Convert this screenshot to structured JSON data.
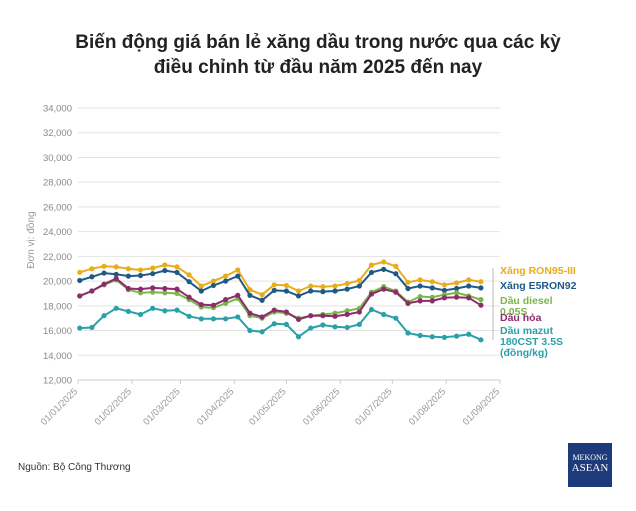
{
  "chart_data": {
    "type": "line",
    "title": "Biến động giá bán lẻ xăng dầu trong nước qua các kỳ điều chỉnh từ đầu năm 2025 đến nay",
    "y_label": "Đơn vị: đồng",
    "source": "Nguồn: Bộ Công Thương",
    "logo": [
      "MEKONG",
      "ASEAN"
    ],
    "x": [
      "2025-01-02",
      "2025-01-09",
      "2025-01-16",
      "2025-01-23",
      "2025-01-30",
      "2025-02-06",
      "2025-02-13",
      "2025-02-20",
      "2025-02-27",
      "2025-03-06",
      "2025-03-13",
      "2025-03-20",
      "2025-03-27",
      "2025-04-03",
      "2025-04-10",
      "2025-04-17",
      "2025-04-24",
      "2025-05-01",
      "2025-05-08",
      "2025-05-15",
      "2025-05-22",
      "2025-05-29",
      "2025-06-05",
      "2025-06-12",
      "2025-06-19",
      "2025-06-26",
      "2025-07-03",
      "2025-07-10",
      "2025-07-17",
      "2025-07-24",
      "2025-07-31",
      "2025-08-07",
      "2025-08-14",
      "2025-08-21"
    ],
    "xlim": [
      "2025-01-01",
      "2025-09-01"
    ],
    "xticks": [
      {
        "value": "2025-01-01",
        "label": "01/01/2025"
      },
      {
        "value": "2025-02-01",
        "label": "01/02/2025"
      },
      {
        "value": "2025-03-01",
        "label": "01/03/2025"
      },
      {
        "value": "2025-04-01",
        "label": "01/04/2025"
      },
      {
        "value": "2025-05-01",
        "label": "01/05/2025"
      },
      {
        "value": "2025-06-01",
        "label": "01/06/2025"
      },
      {
        "value": "2025-07-01",
        "label": "01/07/2025"
      },
      {
        "value": "2025-08-01",
        "label": "01/08/2025"
      },
      {
        "value": "2025-09-01",
        "label": "01/09/2025"
      }
    ],
    "ylim": [
      12000,
      34000
    ],
    "yticks": [
      {
        "value": 12000,
        "label": "12,000"
      },
      {
        "value": 14000,
        "label": "14,000"
      },
      {
        "value": 16000,
        "label": "16,000"
      },
      {
        "value": 18000,
        "label": "18,000"
      },
      {
        "value": 20000,
        "label": "20,000"
      },
      {
        "value": 22000,
        "label": "22,000"
      },
      {
        "value": 24000,
        "label": "24,000"
      },
      {
        "value": 26000,
        "label": "26,000"
      },
      {
        "value": 28000,
        "label": "28,000"
      },
      {
        "value": 30000,
        "label": "30,000"
      },
      {
        "value": 32000,
        "label": "32,000"
      },
      {
        "value": 34000,
        "label": "34,000"
      }
    ],
    "grid": true,
    "series": [
      {
        "name": "Xăng RON95-III",
        "color": "#e9ad1c",
        "values": [
          20710,
          21000,
          21200,
          21150,
          21000,
          20900,
          21050,
          21300,
          21150,
          20500,
          19600,
          20000,
          20400,
          20900,
          19300,
          18900,
          19700,
          19650,
          19200,
          19600,
          19550,
          19600,
          19800,
          20050,
          21300,
          21550,
          21200,
          19900,
          20100,
          19950,
          19700,
          19850,
          20100,
          19950
        ]
      },
      {
        "name": "Xăng E5RON92",
        "color": "#1f5a86",
        "values": [
          20050,
          20350,
          20650,
          20550,
          20400,
          20450,
          20600,
          20850,
          20700,
          19950,
          19200,
          19650,
          20000,
          20400,
          18850,
          18450,
          19250,
          19200,
          18800,
          19200,
          19150,
          19200,
          19350,
          19600,
          20700,
          20950,
          20600,
          19400,
          19600,
          19450,
          19250,
          19400,
          19600,
          19450
        ]
      },
      {
        "name": "Dầu diesel 0.05S",
        "color": "#7ab648",
        "values": [
          18800,
          19200,
          19700,
          20100,
          19300,
          19050,
          19100,
          19050,
          19000,
          18500,
          17900,
          17850,
          18200,
          18600,
          17200,
          17000,
          17500,
          17400,
          17000,
          17200,
          17300,
          17400,
          17600,
          17800,
          19100,
          19550,
          19200,
          18300,
          18750,
          18700,
          18900,
          19050,
          18800,
          18500
        ]
      },
      {
        "name": "Dầu hỏa",
        "color": "#8c2c6c",
        "values": [
          18800,
          19200,
          19750,
          20200,
          19400,
          19350,
          19450,
          19400,
          19350,
          18700,
          18100,
          18050,
          18500,
          18850,
          17400,
          17100,
          17650,
          17500,
          16900,
          17200,
          17200,
          17150,
          17300,
          17500,
          18950,
          19350,
          19100,
          18200,
          18400,
          18400,
          18650,
          18700,
          18650,
          18050
        ]
      },
      {
        "name": "Dầu mazut 180CST 3.5S (đồng/kg)",
        "color": "#2aa1a8",
        "values": [
          16200,
          16250,
          17200,
          17800,
          17550,
          17300,
          17800,
          17600,
          17650,
          17150,
          16950,
          16950,
          16950,
          17100,
          16000,
          15900,
          16550,
          16500,
          15500,
          16200,
          16450,
          16300,
          16250,
          16500,
          17700,
          17300,
          17000,
          15800,
          15600,
          15500,
          15450,
          15550,
          15700,
          15250
        ]
      }
    ]
  }
}
